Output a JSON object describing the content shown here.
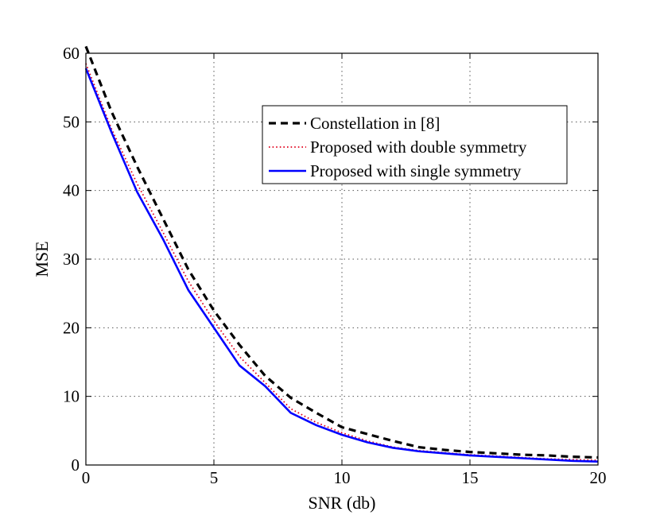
{
  "chart_data": {
    "type": "line",
    "title": "",
    "xlabel": "SNR (db)",
    "ylabel": "MSE",
    "xlim": [
      0,
      20
    ],
    "ylim": [
      0,
      60
    ],
    "xticks": [
      "0",
      "5",
      "10",
      "15",
      "20"
    ],
    "yticks": [
      "0",
      "10",
      "20",
      "30",
      "40",
      "50",
      "60"
    ],
    "grid": true,
    "legend_position": "top-right",
    "x": [
      0,
      1,
      2,
      3,
      4,
      5,
      6,
      7,
      8,
      9,
      10,
      11,
      12,
      13,
      14,
      15,
      16,
      17,
      18,
      19,
      20
    ],
    "series": [
      {
        "name": "Constellation in [8]",
        "style": "dashed",
        "color": "#000000",
        "values": [
          61.0,
          51.5,
          43.5,
          36.0,
          28.5,
          22.5,
          17.5,
          13.0,
          9.8,
          7.6,
          5.5,
          4.5,
          3.5,
          2.6,
          2.2,
          1.9,
          1.7,
          1.5,
          1.4,
          1.2,
          1.1
        ]
      },
      {
        "name": "Proposed with double symmetry",
        "style": "dotted",
        "color": "#e0001b",
        "values": [
          58.5,
          49.0,
          41.0,
          34.0,
          26.8,
          21.0,
          15.8,
          12.0,
          8.2,
          6.2,
          4.7,
          3.5,
          2.6,
          2.1,
          1.8,
          1.5,
          1.3,
          1.1,
          0.9,
          0.8,
          0.7
        ]
      },
      {
        "name": "Proposed with single symmetry",
        "style": "solid",
        "color": "#0000ff",
        "values": [
          57.8,
          48.5,
          39.8,
          33.0,
          25.5,
          20.0,
          14.5,
          11.5,
          7.6,
          5.8,
          4.4,
          3.3,
          2.5,
          2.0,
          1.7,
          1.4,
          1.2,
          1.0,
          0.8,
          0.6,
          0.5
        ]
      }
    ]
  }
}
